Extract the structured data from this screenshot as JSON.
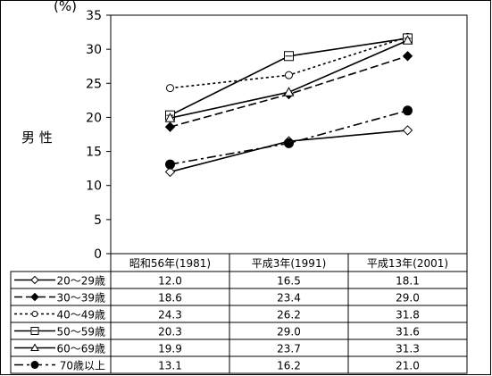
{
  "chart_data": {
    "type": "line",
    "ylabel": "男 性",
    "yunit": "(%)",
    "ylim": [
      0,
      35
    ],
    "yticks": [
      0,
      5,
      10,
      15,
      20,
      25,
      30,
      35
    ],
    "grid": false,
    "legend": "data-table-below",
    "categories": [
      "昭和56年(1981)",
      "平成3年(1991)",
      "平成13年(2001)"
    ],
    "series": [
      {
        "name": "20～29歳",
        "values": [
          12.0,
          16.5,
          18.1
        ],
        "labels": [
          "12.0",
          "16.5",
          "18.1"
        ],
        "marker": "diamond-open",
        "dash": "solid"
      },
      {
        "name": "30～39歳",
        "values": [
          18.6,
          23.4,
          29.0
        ],
        "labels": [
          "18.6",
          "23.4",
          "29.0"
        ],
        "marker": "diamond-filled",
        "dash": "dashed"
      },
      {
        "name": "40～49歳",
        "values": [
          24.3,
          26.2,
          31.8
        ],
        "labels": [
          "24.3",
          "26.2",
          "31.8"
        ],
        "marker": "circle-open",
        "dash": "dotted"
      },
      {
        "name": "50～59歳",
        "values": [
          20.3,
          29.0,
          31.6
        ],
        "labels": [
          "20.3",
          "29.0",
          "31.6"
        ],
        "marker": "square-open",
        "dash": "solid"
      },
      {
        "name": "60～69歳",
        "values": [
          19.9,
          23.7,
          31.3
        ],
        "labels": [
          "19.9",
          "23.7",
          "31.3"
        ],
        "marker": "triangle-open",
        "dash": "solid"
      },
      {
        "name": "70歳以上",
        "values": [
          13.1,
          16.2,
          21.0
        ],
        "labels": [
          "13.1",
          "16.2",
          "21.0"
        ],
        "marker": "circle-filled",
        "dash": "dashdot"
      }
    ]
  }
}
